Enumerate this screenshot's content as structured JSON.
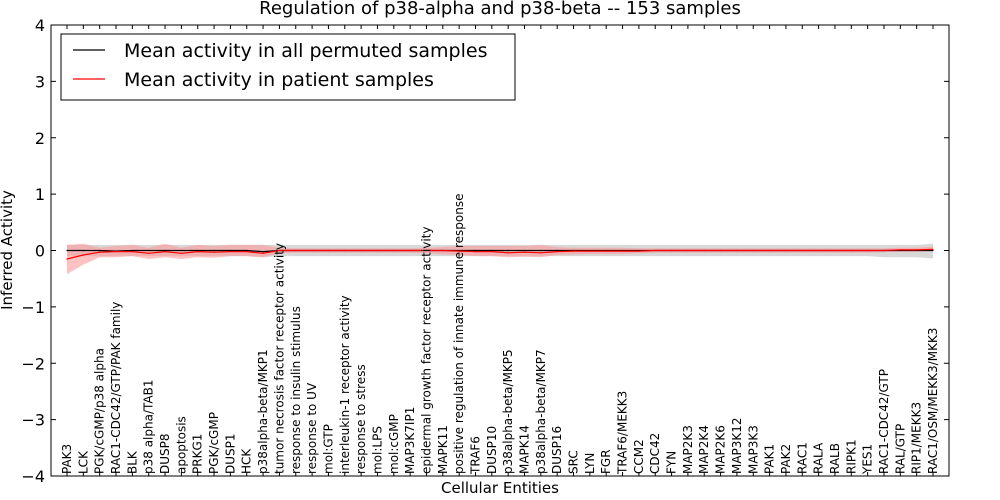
{
  "chart_data": {
    "type": "line",
    "title": "Regulation of p38-alpha and p38-beta -- 153 samples",
    "xlabel": "Cellular Entities",
    "ylabel": "Inferred Activity",
    "ylim": [
      -4,
      4
    ],
    "yticks": [
      -4,
      -3,
      -2,
      -1,
      0,
      1,
      2,
      3,
      4
    ],
    "ytick_labels": [
      "−4",
      "−3",
      "−2",
      "−1",
      "0",
      "1",
      "2",
      "3",
      "4"
    ],
    "legend_position": "top-left",
    "categories": [
      "PAK3",
      "LCK",
      "PGK/cGMP/p38 alpha",
      "RAC1-CDC42/GTP/PAK family",
      "BLK",
      "p38 alpha/TAB1",
      "DUSP8",
      "apoptosis",
      "PRKG1",
      "PGK/cGMP",
      "DUSP1",
      "HCK",
      "p38alpha-beta/MKP1",
      "tumor necrosis factor receptor activity",
      "response to insulin stimulus",
      "response to UV",
      "mol:GTP",
      "interleukin-1 receptor activity",
      "response to stress",
      "mol:LPS",
      "mol:cGMP",
      "MAP3K7IP1",
      "epidermal growth factor receptor activity",
      "MAPK11",
      "positive regulation of innate immune response",
      "TRAF6",
      "DUSP10",
      "p38alpha-beta/MKP5",
      "MAPK14",
      "p38alpha-beta/MKP7",
      "DUSP16",
      "SRC",
      "LYN",
      "FGR",
      "TRAF6/MEKK3",
      "CCM2",
      "CDC42",
      "FYN",
      "MAP2K3",
      "MAP2K4",
      "MAP2K6",
      "MAP3K12",
      "MAP3K3",
      "PAK1",
      "PAK2",
      "RAC1",
      "RALA",
      "RALB",
      "RIPK1",
      "YES1",
      "RAC1-CDC42/GTP",
      "RAL/GTP",
      "RIP1/MEKK3",
      "RAC1/OSM/MEKK3/MKK3"
    ],
    "series": [
      {
        "name": "Mean activity in all permuted samples",
        "color": "#000000",
        "band_color": "#c8c8c8",
        "values": [
          0.0,
          0.0,
          0.0,
          -0.01,
          0.0,
          0.0,
          0.0,
          0.0,
          0.0,
          0.0,
          0.0,
          0.0,
          -0.02,
          0.0,
          0.0,
          0.0,
          0.0,
          0.0,
          0.0,
          0.0,
          0.0,
          0.0,
          0.0,
          0.0,
          0.0,
          0.0,
          0.0,
          0.0,
          0.0,
          0.0,
          0.0,
          0.0,
          0.0,
          0.0,
          0.0,
          0.0,
          0.0,
          0.0,
          0.0,
          0.0,
          0.0,
          0.0,
          0.0,
          0.0,
          0.0,
          0.0,
          0.0,
          0.0,
          0.0,
          0.0,
          0.0,
          0.0,
          0.0,
          0.0
        ],
        "lower": [
          -0.1,
          -0.1,
          -0.1,
          -0.1,
          -0.1,
          -0.1,
          -0.1,
          -0.1,
          -0.1,
          -0.1,
          -0.1,
          -0.1,
          -0.12,
          -0.1,
          -0.1,
          -0.1,
          -0.1,
          -0.1,
          -0.1,
          -0.1,
          -0.1,
          -0.1,
          -0.1,
          -0.1,
          -0.1,
          -0.1,
          -0.1,
          -0.1,
          -0.1,
          -0.1,
          -0.1,
          -0.1,
          -0.1,
          -0.1,
          -0.1,
          -0.1,
          -0.1,
          -0.1,
          -0.1,
          -0.1,
          -0.1,
          -0.1,
          -0.1,
          -0.1,
          -0.1,
          -0.1,
          -0.1,
          -0.1,
          -0.1,
          -0.1,
          -0.12,
          -0.12,
          -0.12,
          -0.14
        ],
        "upper": [
          0.1,
          0.1,
          0.1,
          0.1,
          0.1,
          0.1,
          0.1,
          0.1,
          0.1,
          0.1,
          0.1,
          0.1,
          0.1,
          0.1,
          0.1,
          0.1,
          0.1,
          0.1,
          0.1,
          0.1,
          0.1,
          0.1,
          0.1,
          0.1,
          0.1,
          0.1,
          0.1,
          0.1,
          0.1,
          0.1,
          0.1,
          0.1,
          0.1,
          0.1,
          0.1,
          0.1,
          0.1,
          0.1,
          0.1,
          0.1,
          0.1,
          0.1,
          0.1,
          0.1,
          0.1,
          0.1,
          0.1,
          0.1,
          0.1,
          0.1,
          0.1,
          0.1,
          0.1,
          0.12
        ]
      },
      {
        "name": "Mean activity in patient samples",
        "color": "#ff0000",
        "band_color": "#ff9a9a",
        "values": [
          -0.15,
          -0.08,
          -0.03,
          -0.02,
          -0.02,
          -0.05,
          -0.02,
          -0.05,
          -0.02,
          -0.03,
          -0.02,
          -0.02,
          -0.05,
          0.0,
          0.0,
          0.0,
          0.0,
          0.0,
          0.0,
          0.0,
          0.0,
          0.0,
          0.0,
          0.0,
          -0.01,
          -0.02,
          -0.02,
          -0.04,
          -0.03,
          -0.04,
          -0.02,
          -0.01,
          -0.01,
          -0.01,
          -0.01,
          -0.01,
          0.0,
          0.0,
          0.0,
          0.0,
          0.0,
          0.0,
          0.0,
          0.0,
          0.0,
          0.0,
          0.0,
          0.0,
          0.0,
          0.0,
          0.0,
          0.01,
          0.01,
          0.02
        ],
        "lower": [
          -0.42,
          -0.25,
          -0.12,
          -0.12,
          -0.1,
          -0.15,
          -0.12,
          -0.15,
          -0.12,
          -0.13,
          -0.1,
          -0.1,
          -0.12,
          -0.05,
          -0.04,
          -0.04,
          -0.04,
          -0.04,
          -0.04,
          -0.04,
          -0.04,
          -0.04,
          -0.05,
          -0.07,
          -0.08,
          -0.1,
          -0.1,
          -0.12,
          -0.11,
          -0.12,
          -0.08,
          -0.07,
          -0.06,
          -0.06,
          -0.06,
          -0.05,
          -0.04,
          -0.04,
          -0.04,
          -0.04,
          -0.04,
          -0.04,
          -0.04,
          -0.04,
          -0.04,
          -0.04,
          -0.04,
          -0.04,
          -0.04,
          -0.04,
          -0.03,
          -0.02,
          -0.02,
          -0.01
        ],
        "upper": [
          0.1,
          0.12,
          0.05,
          0.08,
          0.1,
          0.05,
          0.12,
          0.05,
          0.1,
          0.08,
          0.1,
          0.1,
          0.1,
          0.05,
          0.04,
          0.04,
          0.04,
          0.04,
          0.04,
          0.04,
          0.04,
          0.04,
          0.05,
          0.06,
          0.08,
          0.08,
          0.08,
          0.08,
          0.08,
          0.1,
          0.06,
          0.05,
          0.05,
          0.05,
          0.05,
          0.04,
          0.04,
          0.04,
          0.04,
          0.04,
          0.04,
          0.04,
          0.04,
          0.04,
          0.04,
          0.04,
          0.04,
          0.04,
          0.04,
          0.04,
          0.04,
          0.05,
          0.05,
          0.07
        ]
      }
    ]
  }
}
